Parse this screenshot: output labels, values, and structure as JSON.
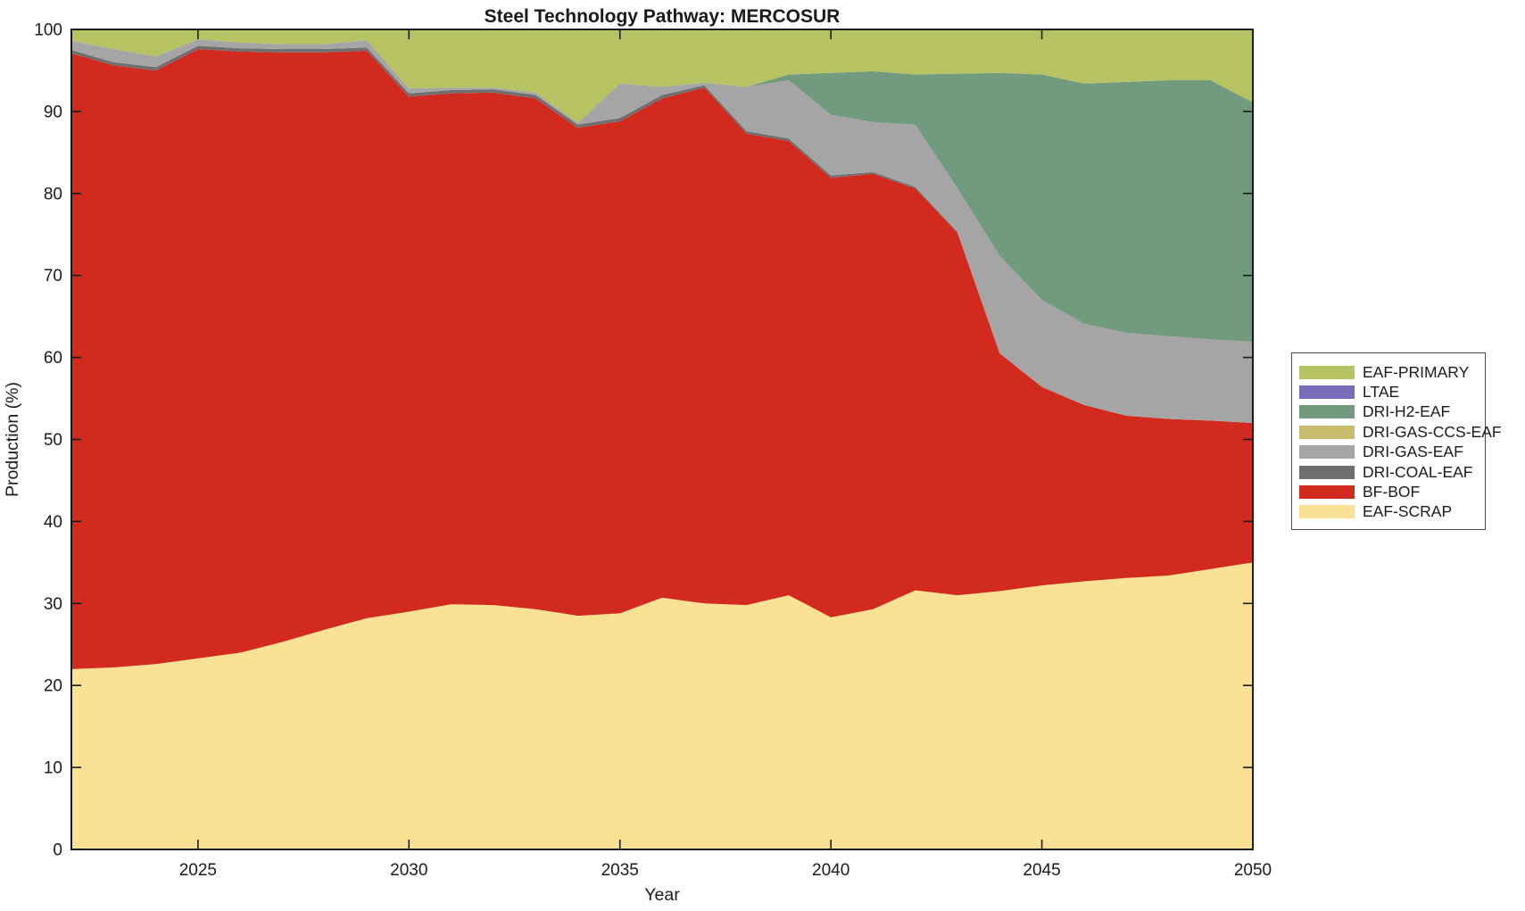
{
  "title": "Steel Technology Pathway: MERCOSUR",
  "chart_data": {
    "type": "area",
    "stacked": true,
    "title": "Steel Technology Pathway: MERCOSUR",
    "xlabel": "Year",
    "ylabel": "Production (%)",
    "xlim": [
      2022,
      2050
    ],
    "ylim": [
      0,
      100
    ],
    "xticks": [
      2025,
      2030,
      2035,
      2040,
      2045,
      2050
    ],
    "yticks": [
      0,
      10,
      20,
      30,
      40,
      50,
      60,
      70,
      80,
      90,
      100
    ],
    "grid": false,
    "legend_position": "right-outside",
    "years": [
      2022,
      2023,
      2024,
      2025,
      2026,
      2027,
      2028,
      2029,
      2030,
      2031,
      2032,
      2033,
      2034,
      2035,
      2036,
      2037,
      2038,
      2039,
      2040,
      2041,
      2042,
      2043,
      2044,
      2045,
      2046,
      2047,
      2048,
      2049,
      2050
    ],
    "series": [
      {
        "name": "EAF-SCRAP",
        "color": "#fbe194",
        "values": [
          22.0,
          22.2,
          22.6,
          23.3,
          24.0,
          25.3,
          26.8,
          28.2,
          29.0,
          29.9,
          29.8,
          29.3,
          28.5,
          28.8,
          30.7,
          30.0,
          29.8,
          31.0,
          28.3,
          29.3,
          31.6,
          31.0,
          31.5,
          32.2,
          32.7,
          33.1,
          33.4,
          34.2,
          35.0
        ]
      },
      {
        "name": "BF-BOF",
        "color": "#d22a1f",
        "values": [
          75.1,
          73.4,
          72.4,
          74.3,
          73.3,
          71.9,
          70.4,
          69.2,
          62.8,
          62.3,
          62.5,
          62.3,
          59.5,
          60.0,
          60.9,
          62.9,
          57.5,
          55.4,
          53.6,
          53.1,
          49.0,
          44.2,
          29.0,
          24.2,
          21.5,
          19.8,
          19.1,
          18.1,
          17.0
        ]
      },
      {
        "name": "DRI-COAL-EAF",
        "color": "#6f6f6f",
        "values": [
          0.4,
          0.4,
          0.4,
          0.4,
          0.4,
          0.4,
          0.4,
          0.4,
          0.4,
          0.4,
          0.4,
          0.4,
          0.4,
          0.4,
          0.4,
          0.3,
          0.3,
          0.3,
          0.3,
          0.2,
          0.2,
          0.1,
          0,
          0,
          0,
          0,
          0,
          0,
          0
        ]
      },
      {
        "name": "DRI-GAS-EAF",
        "color": "#a5a5a5",
        "values": [
          1.1,
          1.6,
          1.3,
          0.8,
          0.7,
          0.6,
          0.6,
          0.9,
          0.6,
          0.3,
          0.2,
          0.3,
          0.2,
          4.2,
          1.0,
          0.3,
          5.4,
          7.1,
          7.4,
          6.1,
          7.6,
          5.3,
          11.9,
          10.6,
          9.9,
          10.1,
          10.1,
          9.9,
          9.9
        ]
      },
      {
        "name": "DRI-GAS-CCS-EAF",
        "color": "#c8bc6e",
        "values": [
          0,
          0,
          0,
          0,
          0,
          0,
          0,
          0,
          0,
          0,
          0,
          0,
          0,
          0,
          0,
          0,
          0,
          0,
          0,
          0,
          0,
          0,
          0,
          0,
          0,
          0,
          0,
          0,
          0
        ]
      },
      {
        "name": "DRI-H2-EAF",
        "color": "#719a7f",
        "values": [
          0,
          0,
          0,
          0,
          0,
          0,
          0,
          0,
          0,
          0,
          0,
          0,
          0,
          0,
          0,
          0,
          0,
          0.7,
          5.1,
          6.2,
          6.1,
          14.0,
          22.3,
          27.5,
          29.3,
          30.6,
          31.2,
          31.6,
          29.2
        ]
      },
      {
        "name": "LTAE",
        "color": "#7a6cb8",
        "values": [
          0,
          0,
          0,
          0,
          0,
          0,
          0,
          0,
          0,
          0,
          0,
          0,
          0,
          0,
          0,
          0,
          0,
          0,
          0,
          0,
          0,
          0,
          0,
          0,
          0,
          0,
          0,
          0,
          0
        ]
      },
      {
        "name": "EAF-PRIMARY",
        "color": "#b7c263",
        "values": [
          1.4,
          2.4,
          3.3,
          1.2,
          1.6,
          1.8,
          1.8,
          1.3,
          7.2,
          7.1,
          7.1,
          7.7,
          11.4,
          6.6,
          7.0,
          6.5,
          7.0,
          5.5,
          5.3,
          5.1,
          5.5,
          5.4,
          5.3,
          5.5,
          6.6,
          6.4,
          6.2,
          6.2,
          8.9
        ]
      }
    ],
    "legend_order_top_to_bottom": [
      "EAF-PRIMARY",
      "LTAE",
      "DRI-H2-EAF",
      "DRI-GAS-CCS-EAF",
      "DRI-GAS-EAF",
      "DRI-COAL-EAF",
      "BF-BOF",
      "EAF-SCRAP"
    ]
  },
  "style": {
    "axis_color": "#1a1a1a",
    "background": "#ffffff"
  }
}
